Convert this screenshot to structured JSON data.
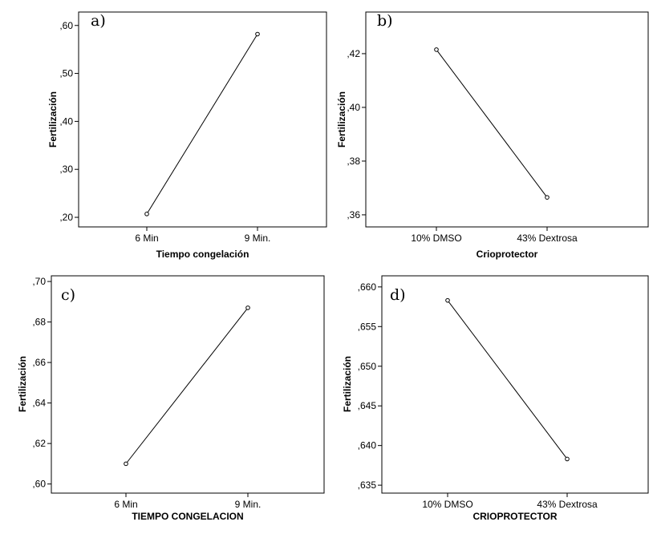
{
  "chart_data": [
    {
      "type": "line",
      "panel_label": "a)",
      "xlabel": "Tiempo congelación",
      "ylabel": "Fertilización",
      "categories": [
        "6 Min",
        "9 Min."
      ],
      "values": [
        0.207,
        0.582
      ],
      "ylim": [
        0.18,
        0.628
      ],
      "y_ticks": [
        0.2,
        0.3,
        0.4,
        0.5,
        0.6
      ],
      "y_tick_labels": [
        ",20",
        ",30",
        ",40",
        ",50",
        ",60"
      ],
      "grid": false,
      "marker": "open-circle"
    },
    {
      "type": "line",
      "panel_label": "b)",
      "xlabel": "Crioprotector",
      "ylabel": "Fertilización",
      "categories": [
        "10% DMSO",
        "43% Dextrosa"
      ],
      "values": [
        0.4215,
        0.3665
      ],
      "ylim": [
        0.3555,
        0.4355
      ],
      "y_ticks": [
        0.36,
        0.38,
        0.4,
        0.42
      ],
      "y_tick_labels": [
        ",36",
        ",38",
        ",40",
        ",42"
      ],
      "grid": false,
      "marker": "open-circle"
    },
    {
      "type": "line",
      "panel_label": "c)",
      "xlabel": "TIEMPO CONGELACION",
      "ylabel": "Fertilización",
      "categories": [
        "6 Min",
        "9 Min."
      ],
      "values": [
        0.61,
        0.687
      ],
      "ylim": [
        0.5955,
        0.7028
      ],
      "y_ticks": [
        0.6,
        0.62,
        0.64,
        0.66,
        0.68,
        0.7
      ],
      "y_tick_labels": [
        ",60",
        ",62",
        ",64",
        ",66",
        ",68",
        ",70"
      ],
      "grid": false,
      "marker": "open-circle"
    },
    {
      "type": "line",
      "panel_label": "d)",
      "xlabel": "CRIOPROTECTOR",
      "ylabel": "Fertilización",
      "categories": [
        "10% DMSO",
        "43% Dextrosa"
      ],
      "values": [
        0.6583,
        0.6383
      ],
      "ylim": [
        0.634,
        0.6614
      ],
      "y_ticks": [
        0.635,
        0.64,
        0.645,
        0.65,
        0.655,
        0.66
      ],
      "y_tick_labels": [
        ",635",
        ",640",
        ",645",
        ",650",
        ",655",
        ",660"
      ],
      "grid": false,
      "marker": "open-circle"
    }
  ]
}
